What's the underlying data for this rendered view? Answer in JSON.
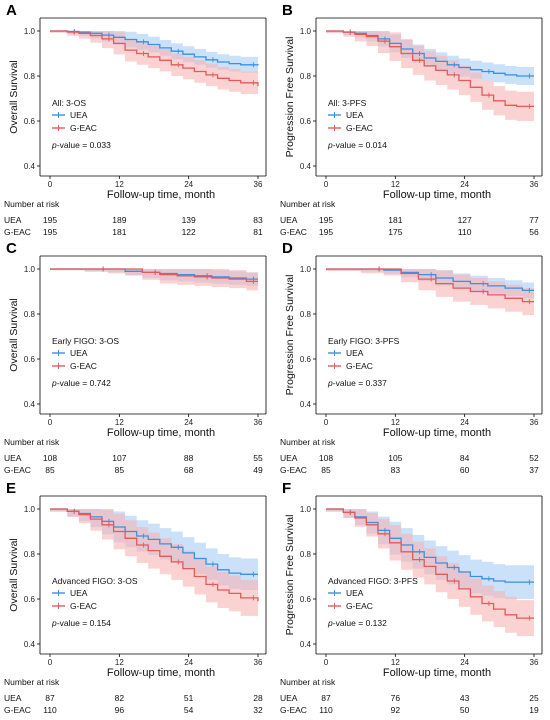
{
  "colors": {
    "UEA": "#3d8fe0",
    "G-EAC": "#e35a5a",
    "UEA_band": "#a9cdf5",
    "G-EAC_band": "#f6b4b4"
  },
  "chart_data": [
    {
      "type": "line",
      "panel": "A",
      "ylabel": "Overall Survival",
      "xlabel": "Follow-up time, month",
      "annotation": "All: 3-OS",
      "pvalue_label": "p",
      "pvalue_text": "-value = 0.033",
      "xticks": [
        0,
        12,
        24,
        36
      ],
      "yticks": [
        0.4,
        0.6,
        0.8,
        1.0
      ],
      "xlim": [
        0,
        36
      ],
      "ylim": [
        0.4,
        1.0
      ],
      "series": [
        {
          "name": "UEA",
          "x": [
            0,
            3,
            5,
            7,
            9,
            11,
            13,
            15,
            17,
            19,
            21,
            23,
            25,
            27,
            29,
            31,
            33,
            36
          ],
          "y": [
            1.0,
            0.998,
            0.995,
            0.99,
            0.982,
            0.972,
            0.962,
            0.952,
            0.94,
            0.925,
            0.91,
            0.897,
            0.885,
            0.872,
            0.862,
            0.855,
            0.85,
            0.848
          ],
          "ci": 0.035
        },
        {
          "name": "G-EAC",
          "x": [
            0,
            3,
            5,
            7,
            9,
            11,
            13,
            15,
            17,
            19,
            21,
            23,
            25,
            27,
            29,
            31,
            33,
            36
          ],
          "y": [
            1.0,
            0.995,
            0.99,
            0.98,
            0.965,
            0.945,
            0.915,
            0.9,
            0.885,
            0.87,
            0.85,
            0.835,
            0.82,
            0.805,
            0.79,
            0.78,
            0.77,
            0.755
          ],
          "ci": 0.05
        }
      ],
      "risk_header": "Number at risk",
      "risk": [
        {
          "name": "UEA",
          "values": [
            "195",
            "189",
            "139",
            "83"
          ]
        },
        {
          "name": "G-EAC",
          "values": [
            "195",
            "181",
            "122",
            "81"
          ]
        }
      ]
    },
    {
      "type": "line",
      "panel": "B",
      "ylabel": "Progression Free Survival",
      "xlabel": "Follow-up time, month",
      "annotation": "All: 3-PFS",
      "pvalue_label": "p",
      "pvalue_text": "-value = 0.014",
      "xticks": [
        0,
        12,
        24,
        36
      ],
      "yticks": [
        0.4,
        0.6,
        0.8,
        1.0
      ],
      "xlim": [
        0,
        36
      ],
      "ylim": [
        0.4,
        1.0
      ],
      "series": [
        {
          "name": "UEA",
          "x": [
            0,
            3,
            5,
            7,
            9,
            11,
            13,
            15,
            17,
            19,
            21,
            23,
            25,
            27,
            29,
            31,
            33,
            36
          ],
          "y": [
            1.0,
            0.995,
            0.99,
            0.98,
            0.965,
            0.945,
            0.92,
            0.9,
            0.88,
            0.865,
            0.85,
            0.838,
            0.828,
            0.82,
            0.812,
            0.805,
            0.8,
            0.8
          ],
          "ci": 0.04
        },
        {
          "name": "G-EAC",
          "x": [
            0,
            3,
            5,
            7,
            9,
            11,
            13,
            15,
            17,
            19,
            21,
            23,
            25,
            27,
            29,
            31,
            33,
            36
          ],
          "y": [
            1.0,
            0.995,
            0.985,
            0.975,
            0.955,
            0.93,
            0.9,
            0.87,
            0.845,
            0.825,
            0.805,
            0.78,
            0.75,
            0.715,
            0.69,
            0.67,
            0.665,
            0.665
          ],
          "ci": 0.065
        }
      ],
      "risk_header": "Number at risk",
      "risk": [
        {
          "name": "UEA",
          "values": [
            "195",
            "181",
            "127",
            "77"
          ]
        },
        {
          "name": "G-EAC",
          "values": [
            "195",
            "175",
            "110",
            "56"
          ]
        }
      ]
    },
    {
      "type": "line",
      "panel": "C",
      "ylabel": "Overall Survival",
      "xlabel": "Follow-up time, month",
      "annotation": "Early FIGO: 3-OS",
      "pvalue_label": "p",
      "pvalue_text": "-value = 0.742",
      "xticks": [
        0,
        12,
        24,
        36
      ],
      "yticks": [
        0.4,
        0.6,
        0.8,
        1.0
      ],
      "xlim": [
        0,
        36
      ],
      "ylim": [
        0.4,
        1.0
      ],
      "series": [
        {
          "name": "UEA",
          "x": [
            0,
            6,
            10,
            13,
            16,
            19,
            22,
            25,
            28,
            31,
            34,
            36
          ],
          "y": [
            1.0,
            1.0,
            1.0,
            0.99,
            0.985,
            0.98,
            0.975,
            0.97,
            0.965,
            0.96,
            0.955,
            0.955
          ],
          "ci": 0.03
        },
        {
          "name": "G-EAC",
          "x": [
            0,
            6,
            10,
            13,
            16,
            19,
            22,
            25,
            28,
            31,
            34,
            36
          ],
          "y": [
            1.0,
            1.0,
            1.0,
            1.0,
            0.985,
            0.975,
            0.97,
            0.965,
            0.96,
            0.955,
            0.945,
            0.945
          ],
          "ci": 0.04
        }
      ],
      "risk_header": "Number at risk",
      "risk": [
        {
          "name": "UEA",
          "values": [
            "108",
            "107",
            "88",
            "55"
          ]
        },
        {
          "name": "G-EAC",
          "values": [
            "85",
            "85",
            "68",
            "49"
          ]
        }
      ]
    },
    {
      "type": "line",
      "panel": "D",
      "ylabel": "Progression Free Survival",
      "xlabel": "Follow-up time, month",
      "annotation": "Early FIGO: 3-PFS",
      "pvalue_label": "p",
      "pvalue_text": "-value = 0.337",
      "xticks": [
        0,
        12,
        24,
        36
      ],
      "yticks": [
        0.4,
        0.6,
        0.8,
        1.0
      ],
      "xlim": [
        0,
        36
      ],
      "ylim": [
        0.4,
        1.0
      ],
      "series": [
        {
          "name": "UEA",
          "x": [
            0,
            6,
            10,
            13,
            16,
            19,
            22,
            25,
            28,
            31,
            34,
            36
          ],
          "y": [
            1.0,
            1.0,
            0.995,
            0.985,
            0.975,
            0.96,
            0.945,
            0.935,
            0.925,
            0.915,
            0.905,
            0.905
          ],
          "ci": 0.035
        },
        {
          "name": "G-EAC",
          "x": [
            0,
            6,
            10,
            13,
            16,
            19,
            22,
            25,
            28,
            31,
            34,
            36
          ],
          "y": [
            1.0,
            1.0,
            1.0,
            0.98,
            0.955,
            0.935,
            0.915,
            0.9,
            0.885,
            0.87,
            0.855,
            0.855
          ],
          "ci": 0.06
        }
      ],
      "risk_header": "Number at risk",
      "risk": [
        {
          "name": "UEA",
          "values": [
            "108",
            "105",
            "84",
            "52"
          ]
        },
        {
          "name": "G-EAC",
          "values": [
            "85",
            "83",
            "60",
            "37"
          ]
        }
      ]
    },
    {
      "type": "line",
      "panel": "E",
      "ylabel": "Overall Survival",
      "xlabel": "Follow-up time, month",
      "annotation": "Advanced FIGO: 3-OS",
      "pvalue_label": "p",
      "pvalue_text": "-value = 0.154",
      "xticks": [
        0,
        12,
        24,
        36
      ],
      "yticks": [
        0.4,
        0.6,
        0.8,
        1.0
      ],
      "xlim": [
        0,
        36
      ],
      "ylim": [
        0.4,
        1.0
      ],
      "series": [
        {
          "name": "UEA",
          "x": [
            0,
            3,
            5,
            7,
            9,
            11,
            13,
            15,
            17,
            19,
            21,
            23,
            25,
            27,
            29,
            31,
            33,
            36
          ],
          "y": [
            1.0,
            0.99,
            0.98,
            0.965,
            0.945,
            0.92,
            0.9,
            0.88,
            0.865,
            0.845,
            0.83,
            0.805,
            0.78,
            0.755,
            0.73,
            0.715,
            0.71,
            0.71
          ],
          "ci": 0.07
        },
        {
          "name": "G-EAC",
          "x": [
            0,
            3,
            5,
            7,
            9,
            11,
            13,
            15,
            17,
            19,
            21,
            23,
            25,
            27,
            29,
            31,
            33,
            36
          ],
          "y": [
            1.0,
            0.99,
            0.975,
            0.955,
            0.93,
            0.9,
            0.87,
            0.84,
            0.815,
            0.79,
            0.765,
            0.735,
            0.7,
            0.665,
            0.64,
            0.625,
            0.605,
            0.59
          ],
          "ci": 0.08
        }
      ],
      "risk_header": "Number at risk",
      "risk": [
        {
          "name": "UEA",
          "values": [
            "87",
            "82",
            "51",
            "28"
          ]
        },
        {
          "name": "G-EAC",
          "values": [
            "110",
            "96",
            "54",
            "32"
          ]
        }
      ]
    },
    {
      "type": "line",
      "panel": "F",
      "ylabel": "Progression Free Survival",
      "xlabel": "Follow-up time, month",
      "annotation": "Advanced FIGO: 3-PFS",
      "pvalue_label": "p",
      "pvalue_text": "-value = 0.132",
      "xticks": [
        0,
        12,
        24,
        36
      ],
      "yticks": [
        0.4,
        0.6,
        0.8,
        1.0
      ],
      "xlim": [
        0,
        36
      ],
      "ylim": [
        0.4,
        1.0
      ],
      "series": [
        {
          "name": "UEA",
          "x": [
            0,
            3,
            5,
            7,
            9,
            11,
            13,
            15,
            17,
            19,
            21,
            23,
            25,
            27,
            29,
            31,
            33,
            36
          ],
          "y": [
            1.0,
            0.985,
            0.965,
            0.94,
            0.905,
            0.87,
            0.84,
            0.81,
            0.785,
            0.76,
            0.74,
            0.72,
            0.7,
            0.69,
            0.68,
            0.675,
            0.675,
            0.675
          ],
          "ci": 0.075
        },
        {
          "name": "G-EAC",
          "x": [
            0,
            3,
            5,
            7,
            9,
            11,
            13,
            15,
            17,
            19,
            21,
            23,
            25,
            27,
            29,
            31,
            33,
            36
          ],
          "y": [
            1.0,
            0.985,
            0.96,
            0.93,
            0.89,
            0.85,
            0.81,
            0.775,
            0.745,
            0.71,
            0.68,
            0.645,
            0.61,
            0.58,
            0.555,
            0.53,
            0.515,
            0.515
          ],
          "ci": 0.08
        }
      ],
      "risk_header": "Number at risk",
      "risk": [
        {
          "name": "UEA",
          "values": [
            "87",
            "76",
            "43",
            "25"
          ]
        },
        {
          "name": "G-EAC",
          "values": [
            "110",
            "92",
            "50",
            "19"
          ]
        }
      ]
    }
  ]
}
